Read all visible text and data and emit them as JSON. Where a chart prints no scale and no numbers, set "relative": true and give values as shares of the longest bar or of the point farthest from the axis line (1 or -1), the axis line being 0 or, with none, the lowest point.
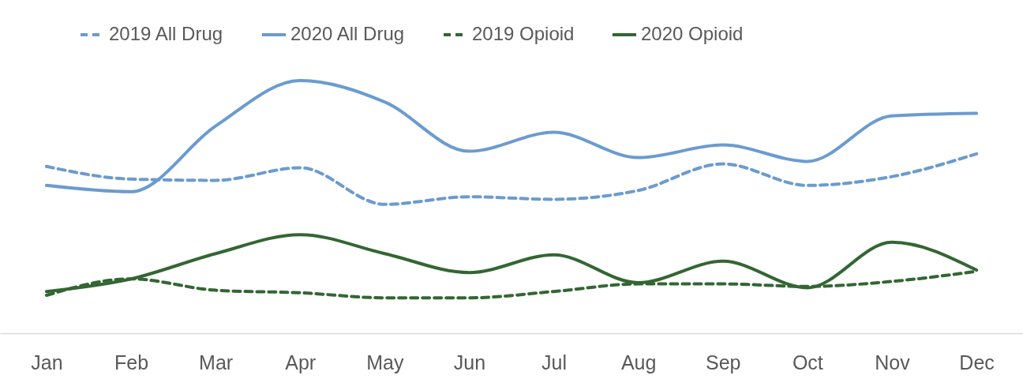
{
  "chart_data": {
    "type": "line",
    "relative": true,
    "legend": "top",
    "grid": false,
    "marker": "none",
    "categories": [
      "Jan",
      "Feb",
      "Mar",
      "Apr",
      "May",
      "Jun",
      "Jul",
      "Aug",
      "Sep",
      "Oct",
      "Nov",
      "Dec"
    ],
    "series": [
      {
        "name": "2019 All Drug",
        "color": "#6b9bcf",
        "line_style": "dashed",
        "values": [
          0.66,
          0.61,
          0.605,
          0.655,
          0.51,
          0.54,
          0.53,
          0.565,
          0.67,
          0.585,
          0.62,
          0.71
        ]
      },
      {
        "name": "2020 All Drug",
        "color": "#6b9bcf",
        "line_style": "solid",
        "values": [
          0.585,
          0.56,
          0.82,
          1,
          0.915,
          0.72,
          0.795,
          0.695,
          0.745,
          0.68,
          0.86,
          0.87
        ]
      },
      {
        "name": "2019 Opioid",
        "color": "#336633",
        "line_style": "dashed",
        "values": [
          0.15,
          0.215,
          0.17,
          0.16,
          0.14,
          0.14,
          0.165,
          0.195,
          0.195,
          0.185,
          0.205,
          0.245
        ]
      },
      {
        "name": "2020 Opioid",
        "color": "#336633",
        "line_style": "solid",
        "values": [
          0.165,
          0.215,
          0.315,
          0.39,
          0.315,
          0.24,
          0.31,
          0.2,
          0.285,
          0.18,
          0.36,
          0.25
        ]
      }
    ]
  }
}
